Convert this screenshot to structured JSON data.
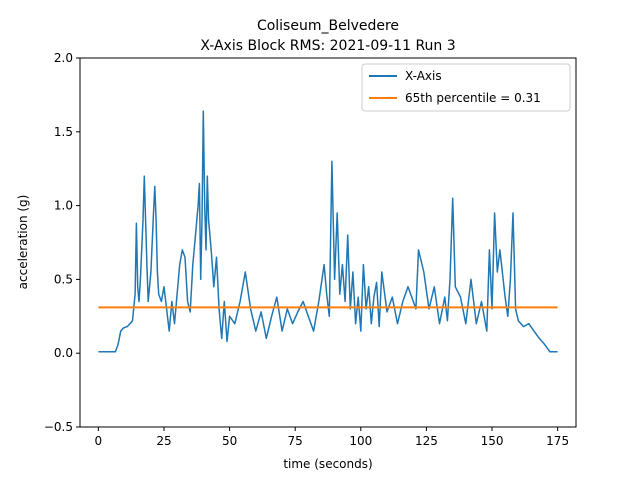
{
  "chart_data": {
    "type": "line",
    "title_line1": "Coliseum_Belvedere",
    "title_line2": "X-Axis Block RMS: 2021-09-11 Run 3",
    "xlabel": "time (seconds)",
    "ylabel": "acceleration (g)",
    "xlim": [
      -7,
      182
    ],
    "ylim": [
      -0.5,
      2.0
    ],
    "xticks": [
      0,
      25,
      50,
      75,
      100,
      125,
      150,
      175
    ],
    "yticks": [
      -0.5,
      0.0,
      0.5,
      1.0,
      1.5,
      2.0
    ],
    "ytick_labels": [
      "−0.5",
      "0.0",
      "0.5",
      "1.0",
      "1.5",
      "2.0"
    ],
    "grid": false,
    "legend_position": "top-right",
    "series": [
      {
        "name": "X-Axis",
        "color": "#1f77b4",
        "x": [
          0,
          5,
          6.5,
          7.5,
          8.5,
          9.5,
          11,
          12,
          13,
          14,
          14.5,
          15,
          15.5,
          16,
          17,
          17.5,
          18,
          18.5,
          19,
          20,
          21,
          21.5,
          22,
          22.5,
          23,
          24,
          25,
          26,
          27,
          28,
          29,
          30,
          31,
          32,
          33,
          34,
          35,
          36,
          37,
          38,
          38.5,
          39,
          39.5,
          40,
          40.5,
          41,
          41.5,
          42,
          43,
          44,
          45,
          46,
          47,
          48,
          49,
          50,
          52,
          54,
          56,
          58,
          60,
          62,
          64,
          66,
          68,
          70,
          72,
          74,
          76,
          78,
          80,
          82,
          84,
          86,
          87,
          88,
          89,
          90,
          91,
          92,
          93,
          94,
          95,
          96,
          97,
          98,
          99,
          100,
          101,
          102,
          103,
          104,
          105,
          106,
          107,
          108,
          110,
          112,
          114,
          116,
          118,
          120,
          121,
          122,
          124,
          126,
          128,
          130,
          132,
          133,
          134,
          135,
          136,
          138,
          140,
          142,
          144,
          146,
          148,
          149,
          150,
          151,
          152,
          153,
          155,
          156,
          157,
          158,
          159,
          160,
          162,
          164,
          166,
          168,
          170,
          172,
          175
        ],
        "y": [
          0.01,
          0.01,
          0.01,
          0.06,
          0.15,
          0.17,
          0.18,
          0.2,
          0.22,
          0.4,
          0.88,
          0.45,
          0.35,
          0.5,
          0.9,
          1.2,
          0.9,
          0.6,
          0.35,
          0.55,
          0.95,
          1.13,
          0.9,
          0.55,
          0.4,
          0.35,
          0.45,
          0.3,
          0.15,
          0.35,
          0.2,
          0.4,
          0.6,
          0.7,
          0.65,
          0.35,
          0.28,
          0.6,
          0.8,
          1.0,
          1.15,
          0.5,
          0.9,
          1.64,
          1.0,
          0.7,
          1.2,
          0.9,
          0.7,
          0.45,
          0.65,
          0.3,
          0.1,
          0.35,
          0.08,
          0.25,
          0.2,
          0.35,
          0.55,
          0.3,
          0.15,
          0.28,
          0.1,
          0.25,
          0.38,
          0.15,
          0.3,
          0.2,
          0.28,
          0.35,
          0.25,
          0.15,
          0.35,
          0.6,
          0.4,
          0.25,
          1.3,
          0.5,
          0.95,
          0.4,
          0.6,
          0.35,
          0.8,
          0.3,
          0.55,
          0.2,
          0.38,
          0.15,
          0.6,
          0.3,
          0.45,
          0.2,
          0.38,
          0.48,
          0.18,
          0.55,
          0.28,
          0.38,
          0.2,
          0.35,
          0.45,
          0.35,
          0.3,
          0.7,
          0.55,
          0.3,
          0.45,
          0.2,
          0.38,
          0.22,
          0.5,
          1.05,
          0.45,
          0.38,
          0.2,
          0.5,
          0.2,
          0.35,
          0.15,
          0.7,
          0.3,
          0.95,
          0.55,
          0.7,
          0.38,
          0.25,
          0.5,
          0.95,
          0.3,
          0.22,
          0.18,
          0.2,
          0.15,
          0.1,
          0.06,
          0.01,
          0.01
        ]
      },
      {
        "name": "65th percentile = 0.31",
        "color": "#ff7f0e",
        "x": [
          0,
          175
        ],
        "y": [
          0.31,
          0.31
        ]
      }
    ]
  }
}
